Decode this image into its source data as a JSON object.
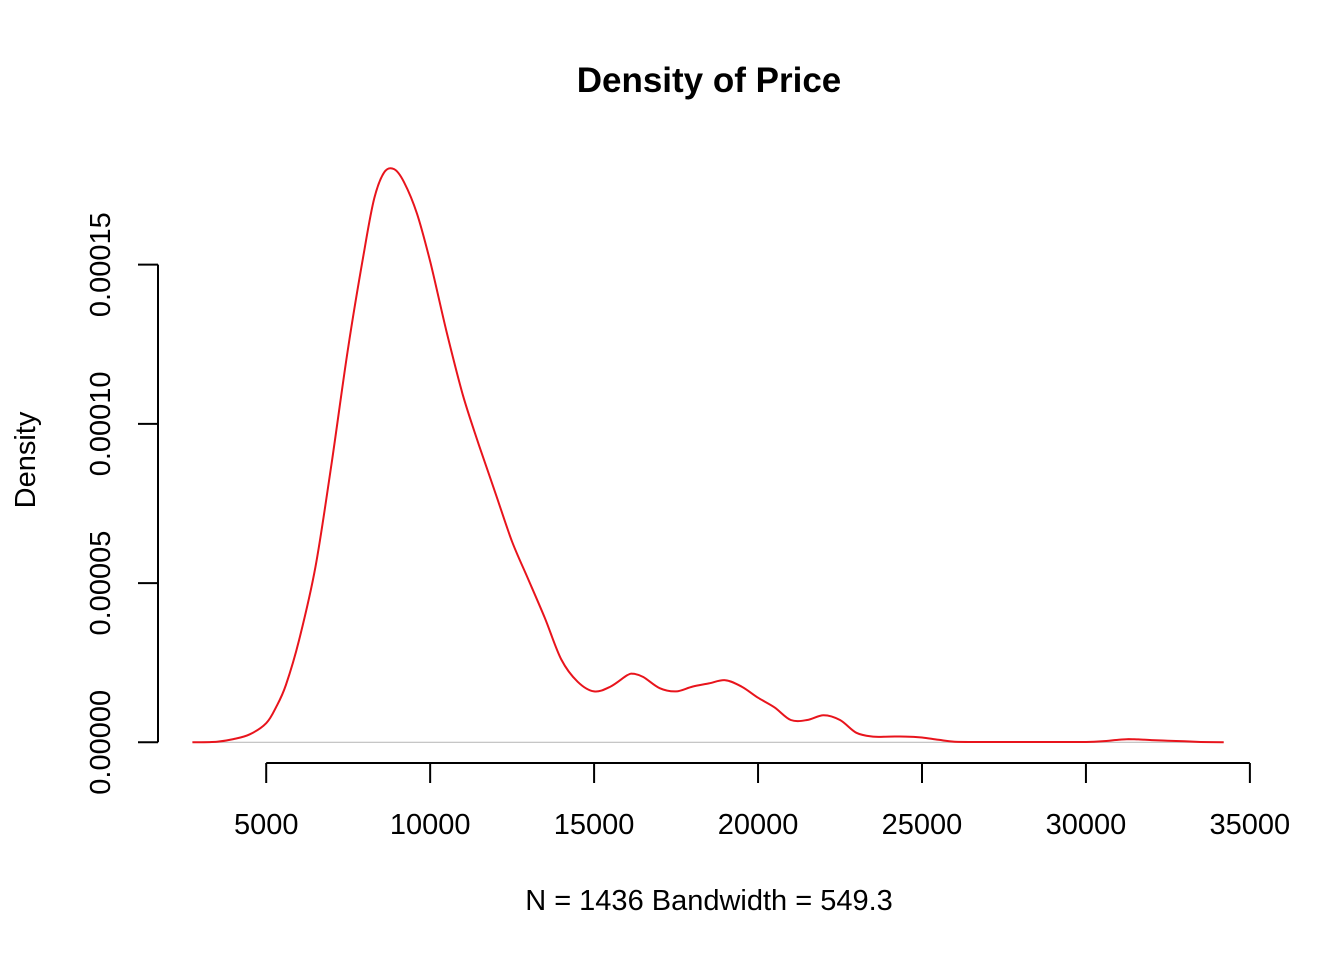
{
  "chart_data": {
    "type": "line",
    "title": "Density of Price",
    "xlabel": "N = 1436   Bandwidth = 549.3",
    "ylabel": "Density",
    "xlim": [
      1700,
      35400
    ],
    "ylim": [
      -6.5e-06,
      0.0001835
    ],
    "x_ticks": [
      5000,
      10000,
      15000,
      20000,
      25000,
      30000,
      35000
    ],
    "x_tick_labels": [
      "5000",
      "10000",
      "15000",
      "20000",
      "25000",
      "30000",
      "35000"
    ],
    "y_ticks": [
      0,
      5e-05,
      0.0001,
      0.00015
    ],
    "y_tick_labels": [
      "0.00000",
      "0.00005",
      "0.00010",
      "0.00015"
    ],
    "baseline": 0,
    "grid": false,
    "line_color": "#e8141c",
    "baseline_color": "#bebebe",
    "series": [
      {
        "x": [
          2750,
          3500,
          4000,
          4500,
          5000,
          5300,
          5600,
          6000,
          6500,
          7000,
          7500,
          8000,
          8300,
          8600,
          8900,
          9200,
          9600,
          10000,
          10500,
          11000,
          11500,
          12000,
          12500,
          13000,
          13500,
          14000,
          14500,
          15000,
          15500,
          16000,
          16200,
          16500,
          17000,
          17500,
          18000,
          18500,
          19000,
          19500,
          20000,
          20500,
          21000,
          21500,
          22000,
          22500,
          23000,
          23500,
          24000,
          24500,
          25000,
          25500,
          26000,
          27000,
          28000,
          29000,
          30000,
          30500,
          31000,
          31300,
          31600,
          32000,
          32500,
          33000,
          33500,
          34200
        ],
        "y": [
          0,
          2e-07,
          1e-06,
          2.5e-06,
          6e-06,
          1.1e-05,
          1.8e-05,
          3.2e-05,
          5.5e-05,
          8.8e-05,
          0.000124,
          0.000155,
          0.000171,
          0.000179,
          0.00018,
          0.000176,
          0.000166,
          0.000151,
          0.000129,
          0.000109,
          9.3e-05,
          7.8e-05,
          6.3e-05,
          5.1e-05,
          3.9e-05,
          2.6e-05,
          1.9e-05,
          1.6e-05,
          1.75e-05,
          2.1e-05,
          2.15e-05,
          2.05e-05,
          1.7e-05,
          1.6e-05,
          1.75e-05,
          1.85e-05,
          1.95e-05,
          1.75e-05,
          1.4e-05,
          1.1e-05,
          7e-06,
          7e-06,
          8.5e-06,
          7e-06,
          3e-06,
          1.8e-06,
          1.8e-06,
          1.8e-06,
          1.5e-06,
          8e-07,
          2e-07,
          1e-07,
          1e-07,
          1e-07,
          1e-07,
          3e-07,
          8e-07,
          1e-06,
          9e-07,
          7e-07,
          5e-07,
          3e-07,
          1e-07,
          0
        ]
      }
    ]
  }
}
